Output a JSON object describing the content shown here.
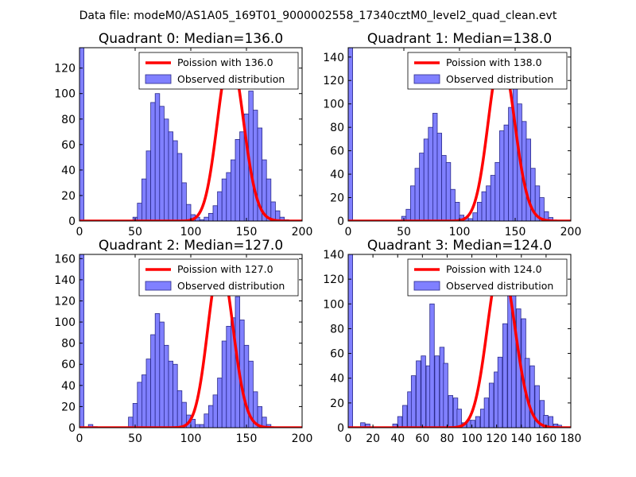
{
  "suptitle": "Data file: modeM0/AS1A05_169T01_9000002558_17340cztM0_level2_quad_clean.evt",
  "colors": {
    "bar_fill": "#8080ff",
    "bar_edge": "#2a2a8a",
    "curve": "#ff0000",
    "axes": "#000000"
  },
  "chart_data": [
    {
      "type": "bar",
      "title": "Quadrant 0: Median=136.0",
      "median": 136.0,
      "xlim": [
        0,
        200
      ],
      "ylim": [
        0,
        136
      ],
      "xticks": [
        0,
        50,
        100,
        150,
        200
      ],
      "yticks": [
        0,
        20,
        40,
        60,
        80,
        100,
        120
      ],
      "legend": [
        "Poission with 136.0",
        "Observed distribution"
      ],
      "bin_width": 4,
      "bins": [
        [
          0,
          136
        ],
        [
          48,
          3
        ],
        [
          52,
          14
        ],
        [
          56,
          33
        ],
        [
          60,
          55
        ],
        [
          64,
          93
        ],
        [
          68,
          100
        ],
        [
          72,
          90
        ],
        [
          76,
          80
        ],
        [
          80,
          70
        ],
        [
          84,
          63
        ],
        [
          88,
          53
        ],
        [
          92,
          30
        ],
        [
          96,
          13
        ],
        [
          100,
          5
        ],
        [
          104,
          3
        ],
        [
          108,
          1
        ],
        [
          112,
          3
        ],
        [
          116,
          6
        ],
        [
          120,
          12
        ],
        [
          124,
          23
        ],
        [
          128,
          33
        ],
        [
          132,
          38
        ],
        [
          136,
          48
        ],
        [
          140,
          64
        ],
        [
          144,
          70
        ],
        [
          148,
          84
        ],
        [
          152,
          102
        ],
        [
          156,
          87
        ],
        [
          160,
          73
        ],
        [
          164,
          48
        ],
        [
          168,
          33
        ],
        [
          172,
          15
        ],
        [
          176,
          8
        ],
        [
          180,
          3
        ],
        [
          184,
          1
        ]
      ]
    },
    {
      "type": "bar",
      "title": "Quadrant 1: Median=138.0",
      "median": 138.0,
      "xlim": [
        0,
        200
      ],
      "ylim": [
        0,
        148
      ],
      "xticks": [
        0,
        50,
        100,
        150,
        200
      ],
      "yticks": [
        0,
        20,
        40,
        60,
        80,
        100,
        120,
        140
      ],
      "legend": [
        "Poission with 138.0",
        "Observed distribution"
      ],
      "bin_width": 4,
      "bins": [
        [
          0,
          148
        ],
        [
          48,
          4
        ],
        [
          52,
          10
        ],
        [
          56,
          30
        ],
        [
          60,
          45
        ],
        [
          64,
          58
        ],
        [
          68,
          70
        ],
        [
          72,
          80
        ],
        [
          76,
          92
        ],
        [
          80,
          75
        ],
        [
          84,
          56
        ],
        [
          88,
          50
        ],
        [
          92,
          27
        ],
        [
          96,
          16
        ],
        [
          100,
          5
        ],
        [
          104,
          3
        ],
        [
          108,
          2
        ],
        [
          112,
          7
        ],
        [
          116,
          16
        ],
        [
          120,
          25
        ],
        [
          124,
          30
        ],
        [
          128,
          39
        ],
        [
          132,
          50
        ],
        [
          136,
          77
        ],
        [
          140,
          82
        ],
        [
          144,
          97
        ],
        [
          148,
          115
        ],
        [
          152,
          100
        ],
        [
          156,
          85
        ],
        [
          160,
          70
        ],
        [
          164,
          45
        ],
        [
          168,
          30
        ],
        [
          172,
          20
        ],
        [
          176,
          8
        ],
        [
          180,
          3
        ]
      ]
    },
    {
      "type": "bar",
      "title": "Quadrant 2: Median=127.0",
      "median": 127.0,
      "xlim": [
        0,
        200
      ],
      "ylim": [
        0,
        164
      ],
      "xticks": [
        0,
        50,
        100,
        150,
        200
      ],
      "yticks": [
        0,
        20,
        40,
        60,
        80,
        100,
        120,
        140,
        160
      ],
      "legend": [
        "Poission with 127.0",
        "Observed distribution"
      ],
      "bin_width": 4,
      "bins": [
        [
          0,
          164
        ],
        [
          8,
          3
        ],
        [
          12,
          1
        ],
        [
          44,
          10
        ],
        [
          48,
          23
        ],
        [
          52,
          43
        ],
        [
          56,
          50
        ],
        [
          60,
          65
        ],
        [
          64,
          88
        ],
        [
          68,
          108
        ],
        [
          72,
          100
        ],
        [
          76,
          78
        ],
        [
          80,
          63
        ],
        [
          84,
          60
        ],
        [
          88,
          35
        ],
        [
          92,
          24
        ],
        [
          96,
          12
        ],
        [
          100,
          8
        ],
        [
          104,
          3
        ],
        [
          108,
          3
        ],
        [
          112,
          13
        ],
        [
          116,
          21
        ],
        [
          120,
          31
        ],
        [
          124,
          47
        ],
        [
          128,
          82
        ],
        [
          132,
          96
        ],
        [
          136,
          104
        ],
        [
          140,
          124
        ],
        [
          144,
          102
        ],
        [
          148,
          78
        ],
        [
          152,
          63
        ],
        [
          156,
          34
        ],
        [
          160,
          20
        ],
        [
          164,
          10
        ],
        [
          168,
          3
        ]
      ]
    },
    {
      "type": "bar",
      "title": "Quadrant 3: Median=124.0",
      "median": 124.0,
      "xlim": [
        0,
        180
      ],
      "ylim": [
        0,
        140
      ],
      "xticks": [
        0,
        20,
        40,
        60,
        80,
        100,
        120,
        140,
        160,
        180
      ],
      "yticks": [
        0,
        20,
        40,
        60,
        80,
        100,
        120,
        140
      ],
      "legend": [
        "Poission with 124.0",
        "Observed distribution"
      ],
      "bin_width": 3.6,
      "bins": [
        [
          0,
          140
        ],
        [
          10,
          4
        ],
        [
          14,
          3
        ],
        [
          36,
          3
        ],
        [
          40,
          9
        ],
        [
          44,
          18
        ],
        [
          48,
          29
        ],
        [
          51,
          42
        ],
        [
          55,
          54
        ],
        [
          59,
          58
        ],
        [
          63,
          50
        ],
        [
          66,
          100
        ],
        [
          70,
          58
        ],
        [
          74,
          65
        ],
        [
          77,
          52
        ],
        [
          81,
          26
        ],
        [
          85,
          24
        ],
        [
          88,
          15
        ],
        [
          92,
          4
        ],
        [
          96,
          6
        ],
        [
          99,
          6
        ],
        [
          103,
          9
        ],
        [
          107,
          15
        ],
        [
          110,
          24
        ],
        [
          114,
          36
        ],
        [
          118,
          45
        ],
        [
          121,
          57
        ],
        [
          125,
          84
        ],
        [
          129,
          110
        ],
        [
          132,
          121
        ],
        [
          136,
          96
        ],
        [
          140,
          88
        ],
        [
          143,
          56
        ],
        [
          147,
          50
        ],
        [
          151,
          34
        ],
        [
          155,
          22
        ],
        [
          158,
          10
        ],
        [
          162,
          9
        ],
        [
          166,
          3
        ],
        [
          169,
          2
        ]
      ]
    }
  ]
}
